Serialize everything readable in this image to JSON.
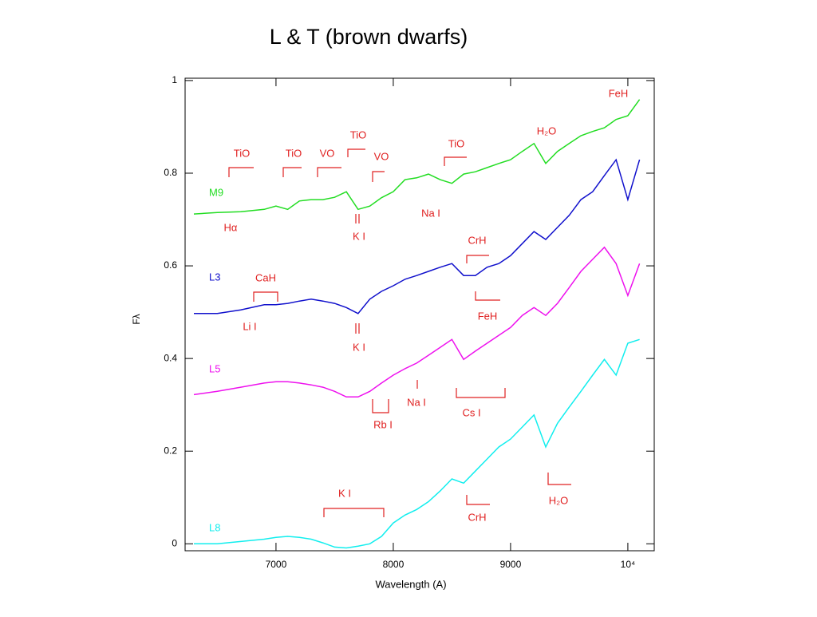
{
  "chart_data": {
    "type": "line",
    "title": "L & T (brown dwarfs)",
    "xlabel": "Wavelength (A)",
    "ylabel": "Fλ",
    "x": [
      6300,
      6500,
      6700,
      6900,
      7000,
      7100,
      7200,
      7300,
      7400,
      7500,
      7600,
      7700,
      7800,
      7900,
      8000,
      8100,
      8200,
      8300,
      8400,
      8500,
      8600,
      8700,
      8800,
      8900,
      9000,
      9100,
      9200,
      9300,
      9400,
      9500,
      9600,
      9700,
      9800,
      9900,
      10000,
      10100
    ],
    "series": [
      {
        "name": "M9",
        "color": "#22dd22",
        "values": [
          0.712,
          0.715,
          0.717,
          0.722,
          0.729,
          0.722,
          0.74,
          0.743,
          0.743,
          0.748,
          0.76,
          0.722,
          0.729,
          0.747,
          0.76,
          0.786,
          0.79,
          0.798,
          0.786,
          0.778,
          0.798,
          0.803,
          0.812,
          0.821,
          0.829,
          0.847,
          0.864,
          0.821,
          0.847,
          0.864,
          0.881,
          0.89,
          0.898,
          0.916,
          0.924,
          0.959
        ]
      },
      {
        "name": "L3",
        "color": "#1010cc",
        "values": [
          0.497,
          0.497,
          0.505,
          0.516,
          0.516,
          0.519,
          0.524,
          0.528,
          0.524,
          0.519,
          0.51,
          0.497,
          0.528,
          0.545,
          0.557,
          0.571,
          0.579,
          0.588,
          0.597,
          0.605,
          0.579,
          0.579,
          0.597,
          0.605,
          0.622,
          0.648,
          0.674,
          0.657,
          0.683,
          0.709,
          0.743,
          0.76,
          0.795,
          0.829,
          0.743,
          0.829
        ]
      },
      {
        "name": "L5",
        "color": "#ee11ee",
        "values": [
          0.322,
          0.329,
          0.338,
          0.347,
          0.35,
          0.35,
          0.347,
          0.343,
          0.338,
          0.329,
          0.317,
          0.317,
          0.329,
          0.347,
          0.364,
          0.378,
          0.39,
          0.407,
          0.424,
          0.441,
          0.398,
          0.416,
          0.433,
          0.45,
          0.467,
          0.493,
          0.51,
          0.493,
          0.519,
          0.553,
          0.588,
          0.614,
          0.64,
          0.605,
          0.536,
          0.605
        ]
      },
      {
        "name": "L8",
        "color": "#11eeee",
        "values": [
          0.0,
          0.0,
          0.005,
          0.01,
          0.014,
          0.016,
          0.014,
          0.01,
          0.002,
          -0.007,
          -0.009,
          -0.005,
          0.0,
          0.016,
          0.045,
          0.062,
          0.074,
          0.091,
          0.114,
          0.14,
          0.131,
          0.157,
          0.183,
          0.209,
          0.226,
          0.252,
          0.278,
          0.209,
          0.26,
          0.295,
          0.329,
          0.364,
          0.398,
          0.364,
          0.433,
          0.441
        ]
      }
    ],
    "xlim": [
      6225,
      10225
    ],
    "xticks": [
      7000,
      8000,
      9000,
      {
        "value": 10000,
        "label": "10⁴"
      }
    ],
    "ylim": [
      -0.015,
      1.005
    ],
    "yticks": [
      0,
      0.2,
      0.4,
      0.6,
      0.8,
      1
    ],
    "annotation_color": "#e02020",
    "annotations": [
      "TiO",
      "TiO",
      "VO",
      "TiO",
      "VO",
      "TiO",
      "H₂O",
      "FeH",
      "Hα",
      "K I",
      "Na I",
      "CaH",
      "Li I",
      "K I",
      "CrH",
      "FeH",
      "Na I",
      "Rb I",
      "Cs I",
      "K I",
      "CrH",
      "H₂O"
    ]
  }
}
